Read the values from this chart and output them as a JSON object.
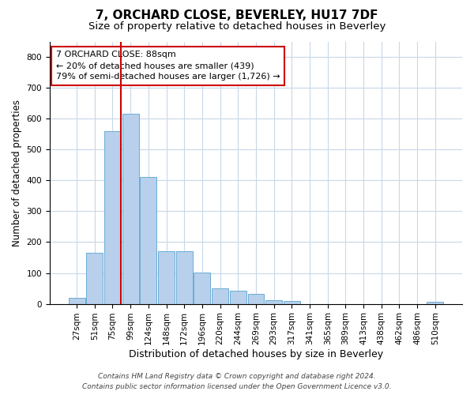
{
  "title": "7, ORCHARD CLOSE, BEVERLEY, HU17 7DF",
  "subtitle": "Size of property relative to detached houses in Beverley",
  "xlabel": "Distribution of detached houses by size in Beverley",
  "ylabel": "Number of detached properties",
  "categories": [
    "27sqm",
    "51sqm",
    "75sqm",
    "99sqm",
    "124sqm",
    "148sqm",
    "172sqm",
    "196sqm",
    "220sqm",
    "244sqm",
    "269sqm",
    "293sqm",
    "317sqm",
    "341sqm",
    "365sqm",
    "389sqm",
    "413sqm",
    "438sqm",
    "462sqm",
    "486sqm",
    "510sqm"
  ],
  "values": [
    20,
    165,
    560,
    615,
    410,
    170,
    170,
    102,
    50,
    42,
    33,
    13,
    10,
    0,
    0,
    0,
    0,
    0,
    0,
    0,
    7
  ],
  "bar_color": "#b8d0eb",
  "bar_edge_color": "#6aadd5",
  "vline_color": "#cc0000",
  "vline_x_index": 2,
  "annotation_line1": "7 ORCHARD CLOSE: 88sqm",
  "annotation_line2": "← 20% of detached houses are smaller (439)",
  "annotation_line3": "79% of semi-detached houses are larger (1,726) →",
  "annotation_box_color": "#ffffff",
  "annotation_box_edge": "#cc0000",
  "ylim": [
    0,
    850
  ],
  "yticks": [
    0,
    100,
    200,
    300,
    400,
    500,
    600,
    700,
    800
  ],
  "footer_line1": "Contains HM Land Registry data © Crown copyright and database right 2024.",
  "footer_line2": "Contains public sector information licensed under the Open Government Licence v3.0.",
  "bg_color": "#ffffff",
  "grid_color": "#c8d8e8",
  "title_fontsize": 11,
  "subtitle_fontsize": 9.5,
  "tick_fontsize": 7.5,
  "ylabel_fontsize": 8.5,
  "xlabel_fontsize": 9,
  "footer_fontsize": 6.5,
  "annotation_fontsize": 8
}
